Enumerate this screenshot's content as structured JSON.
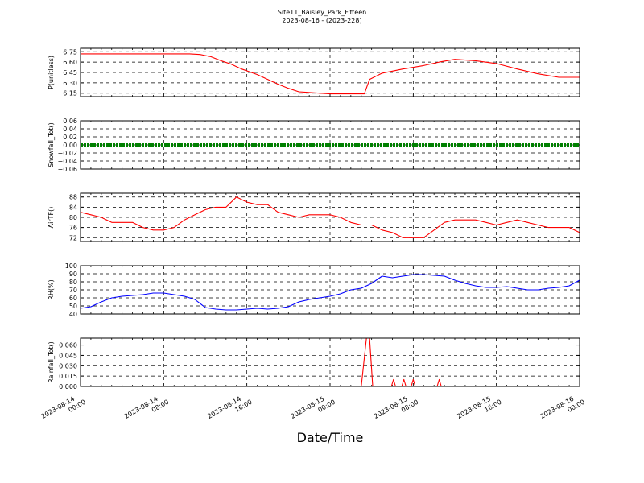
{
  "figure": {
    "title": "Site11_Baisley_Park_Fifteen",
    "subtitle": "2023-08-16 - (2023-228)",
    "xlabel": "Date/Time"
  },
  "x_ticks": [
    "2023-08-14\n00:00",
    "2023-08-14\n08:00",
    "2023-08-14\n16:00",
    "2023-08-15\n00:00",
    "2023-08-15\n08:00",
    "2023-08-15\n16:00",
    "2023-08-16\n00:00"
  ],
  "chart_data": [
    {
      "type": "line",
      "ylabel": "P(unitless)",
      "color": "#ff0000",
      "ylim": [
        6.1,
        6.8
      ],
      "yticks": [
        "6.15",
        "6.30",
        "6.45",
        "6.60",
        "6.75"
      ],
      "ytick_values": [
        6.15,
        6.3,
        6.45,
        6.6,
        6.75
      ],
      "x_hours": [
        0,
        3,
        6,
        10.5,
        11.5,
        12.5,
        13.5,
        14.5,
        15.5,
        17,
        18,
        19,
        20,
        21,
        24,
        27,
        27.3,
        27.8,
        29,
        31,
        33,
        34.5,
        36,
        38,
        40,
        42,
        44,
        46,
        48
      ],
      "values": [
        6.72,
        6.72,
        6.72,
        6.72,
        6.71,
        6.68,
        6.62,
        6.57,
        6.5,
        6.42,
        6.35,
        6.28,
        6.22,
        6.17,
        6.14,
        6.14,
        6.14,
        6.35,
        6.44,
        6.5,
        6.55,
        6.6,
        6.64,
        6.62,
        6.58,
        6.5,
        6.43,
        6.38,
        6.38
      ]
    },
    {
      "type": "scatter",
      "ylabel": "Snowfall_Tot()",
      "color": "#008000",
      "ylim": [
        -0.06,
        0.06
      ],
      "yticks": [
        "−0.06",
        "−0.04",
        "−0.02",
        "0.00",
        "0.02",
        "0.04",
        "0.06"
      ],
      "ytick_values": [
        -0.06,
        -0.04,
        -0.02,
        0,
        0.02,
        0.04,
        0.06
      ],
      "x_hours": [
        0,
        48
      ],
      "values": [
        0,
        0
      ],
      "constant": true
    },
    {
      "type": "line",
      "ylabel": "AirTF()",
      "color": "#ff0000",
      "ylim": [
        70.5,
        89.5
      ],
      "yticks": [
        "72",
        "76",
        "80",
        "84",
        "88"
      ],
      "ytick_values": [
        72,
        76,
        80,
        84,
        88
      ],
      "x_hours": [
        0,
        1,
        2,
        3,
        4,
        5,
        6,
        7,
        8,
        9,
        10,
        11,
        12,
        13,
        14,
        15,
        16,
        17,
        18,
        19,
        20,
        21,
        22,
        23,
        24,
        25,
        26,
        27,
        28,
        29,
        30,
        31,
        32,
        33,
        34,
        35,
        36,
        37,
        38,
        39,
        40,
        41,
        42,
        43,
        44,
        45,
        46,
        47,
        48
      ],
      "values": [
        82,
        81,
        80,
        78,
        78,
        78,
        76,
        75,
        75,
        76,
        79,
        81,
        83,
        84,
        84,
        88,
        86,
        85,
        85,
        82,
        81,
        80,
        81,
        81,
        81,
        80,
        78,
        77,
        77,
        75,
        74,
        72,
        72,
        72,
        75,
        78,
        79,
        79,
        79,
        78,
        77,
        78,
        79,
        78,
        77,
        76,
        76,
        76,
        74
      ]
    },
    {
      "type": "line",
      "ylabel": "RH(%)",
      "color": "#0000ff",
      "ylim": [
        40,
        100
      ],
      "yticks": [
        "40",
        "50",
        "60",
        "70",
        "80",
        "90",
        "100"
      ],
      "ytick_values": [
        40,
        50,
        60,
        70,
        80,
        90,
        100
      ],
      "x_hours": [
        0,
        1,
        2,
        3,
        4,
        5,
        6,
        7,
        8,
        9,
        10,
        11,
        12,
        13,
        14,
        15,
        16,
        17,
        18,
        19,
        20,
        21,
        22,
        23,
        24,
        25,
        26,
        27,
        28,
        29,
        30,
        31,
        32,
        33,
        34,
        35,
        36,
        37,
        38,
        39,
        40,
        41,
        42,
        43,
        44,
        45,
        46,
        47,
        48
      ],
      "values": [
        47,
        49,
        55,
        60,
        62,
        63,
        64,
        66,
        66,
        64,
        62,
        58,
        48,
        46,
        45,
        45,
        46,
        47,
        46,
        47,
        49,
        55,
        58,
        60,
        62,
        65,
        70,
        72,
        78,
        87,
        85,
        87,
        89,
        89,
        88,
        87,
        82,
        78,
        75,
        73,
        73,
        74,
        72,
        70,
        70,
        72,
        73,
        75,
        82
      ]
    },
    {
      "type": "line",
      "ylabel": "Rainfall_Tot()",
      "color": "#ff0000",
      "ylim": [
        0,
        0.07
      ],
      "yticks": [
        "0.000",
        "0.015",
        "0.030",
        "0.045",
        "0.060"
      ],
      "ytick_values": [
        0,
        0.015,
        0.03,
        0.045,
        0.06
      ],
      "x_hours": [
        0,
        27.0,
        27.5,
        27.8,
        28.1,
        29.9,
        30.1,
        30.3,
        30.9,
        31.1,
        31.3,
        31.8,
        32.0,
        32.2,
        34.3,
        34.5,
        34.7,
        48
      ],
      "values": [
        0,
        0,
        0.07,
        0.07,
        0,
        0,
        0.01,
        0,
        0,
        0.01,
        0,
        0,
        0.01,
        0,
        0,
        0.01,
        0,
        0
      ]
    }
  ]
}
